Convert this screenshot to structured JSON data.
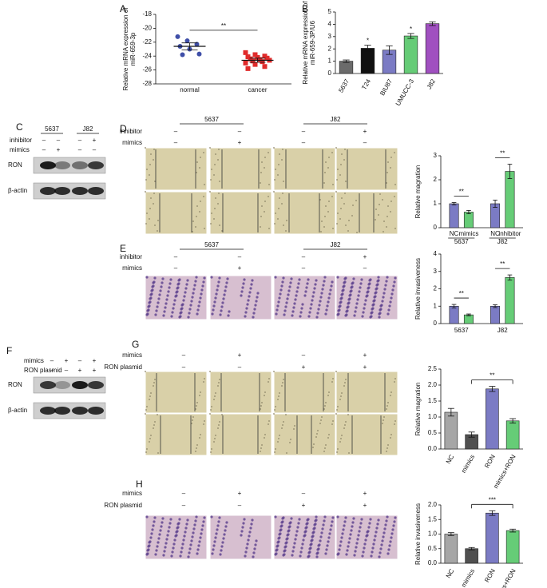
{
  "chart_data": [
    {
      "type": "dot",
      "y_label": [
        "Relative mRNA expression of",
        "miR-659-3p"
      ],
      "categories": [
        "normal",
        "cancer"
      ],
      "points": [
        [
          -21.2,
          -21.8,
          -22.3,
          -22.6,
          -23.0,
          -23.7,
          -23.8
        ],
        [
          -23.5,
          -23.8,
          -24.0,
          -24.1,
          -24.2,
          -24.3,
          -24.4,
          -24.5,
          -24.6,
          -24.7,
          -24.8,
          -25.0,
          -25.2,
          -25.5,
          -25.8
        ]
      ],
      "means": [
        -22.6,
        -24.6
      ],
      "errors": [
        0.5,
        0.3
      ],
      "colors": [
        "#3f4fa8",
        "#e02b2b"
      ],
      "ylim": [
        -28,
        -18
      ],
      "yticks": [
        -28,
        -26,
        -24,
        -22,
        -20,
        -18
      ],
      "significance": [
        {
          "label": "**",
          "from": 0,
          "to": 1
        }
      ]
    },
    {
      "type": "bar",
      "y_label": [
        "Relative mRNA expression of",
        "miR-659-3P/U6"
      ],
      "categories": [
        "5637",
        "T24",
        "BIU87",
        "UMUCC-3",
        "J82"
      ],
      "values": [
        1.0,
        2.05,
        1.9,
        3.05,
        4.05
      ],
      "errors": [
        0.1,
        0.25,
        0.35,
        0.2,
        0.15
      ],
      "colors": [
        "#6b6b6b",
        "#111111",
        "#7b7bc4",
        "#66cc77",
        "#a050c0"
      ],
      "bar_labels": [
        null,
        "*",
        null,
        "*",
        null
      ],
      "ylim": [
        0,
        5
      ],
      "yticks": [
        0,
        1,
        2,
        3,
        4,
        5
      ]
    },
    {
      "type": "bar",
      "y_label": [
        "Relative magration"
      ],
      "categories": [
        "NC",
        "mimics",
        "NC",
        "inhibitor"
      ],
      "groups": [
        "5637",
        "J82"
      ],
      "values": [
        1.0,
        0.65,
        1.0,
        2.35
      ],
      "errors": [
        0.05,
        0.07,
        0.15,
        0.3
      ],
      "colors": [
        "#7b7bc4",
        "#66cc77",
        "#7b7bc4",
        "#66cc77"
      ],
      "ylim": [
        0,
        3
      ],
      "yticks": [
        0,
        1,
        2,
        3
      ],
      "significance": [
        {
          "label": "**",
          "from": 0,
          "to": 1
        },
        {
          "label": "**",
          "from": 2,
          "to": 3
        }
      ]
    },
    {
      "type": "bar",
      "y_label": [
        "Relative invasiveness"
      ],
      "categories": [
        null,
        null,
        null,
        null
      ],
      "groups": [
        "5637",
        "J82"
      ],
      "values": [
        1.0,
        0.5,
        1.0,
        2.65
      ],
      "errors": [
        0.1,
        0.05,
        0.08,
        0.15
      ],
      "colors": [
        "#7b7bc4",
        "#66cc77",
        "#7b7bc4",
        "#66cc77"
      ],
      "ylim": [
        0,
        4
      ],
      "yticks": [
        0,
        1,
        2,
        3,
        4
      ],
      "significance": [
        {
          "label": "**",
          "from": 0,
          "to": 1
        },
        {
          "label": "**",
          "from": 2,
          "to": 3
        }
      ]
    },
    {
      "type": "bar",
      "y_label": [
        "Relative magration"
      ],
      "categories": [
        "NC",
        "mimics",
        "RON",
        "mimics+RON"
      ],
      "values": [
        1.15,
        0.45,
        1.88,
        0.88
      ],
      "errors": [
        0.12,
        0.08,
        0.08,
        0.07
      ],
      "colors": [
        "#a6a6a6",
        "#505050",
        "#7b7bc4",
        "#66cc77"
      ],
      "ylim": [
        0,
        2.5
      ],
      "yticks": [
        {
          "value": 0,
          "label": "0.0"
        },
        0.5,
        {
          "value": 1,
          "label": "1.0"
        },
        1.5,
        {
          "value": 2,
          "label": "2.0"
        },
        2.5
      ],
      "significance": [
        {
          "label": "**",
          "from": 1,
          "to": 3
        }
      ]
    },
    {
      "type": "bar",
      "y_label": [
        "Relative invasiveness"
      ],
      "categories": [
        "NC",
        "mimics",
        "RON",
        "mimics+RON"
      ],
      "values": [
        1.0,
        0.5,
        1.72,
        1.12
      ],
      "errors": [
        0.05,
        0.04,
        0.08,
        0.05
      ],
      "colors": [
        "#a6a6a6",
        "#505050",
        "#7b7bc4",
        "#66cc77"
      ],
      "ylim": [
        0,
        2
      ],
      "yticks": [
        {
          "value": 0,
          "label": "0.0"
        },
        0.5,
        {
          "value": 1,
          "label": "1.0"
        },
        1.5,
        {
          "value": 2,
          "label": "2.0"
        }
      ],
      "significance": [
        {
          "label": "***",
          "from": 1,
          "to": 3
        }
      ]
    }
  ],
  "figure": {
    "letters": [
      "A",
      "B",
      "C",
      "D",
      "E",
      "F",
      "G",
      "H"
    ],
    "C": {
      "cell_lines": [
        "5637",
        "J82"
      ],
      "rows": [
        {
          "label": "inhibitor",
          "signs": [
            "–",
            "–",
            "–",
            "+"
          ]
        },
        {
          "label": "mimics",
          "signs": [
            "–",
            "+",
            "–",
            "–"
          ]
        }
      ],
      "bands": [
        "RON",
        "β-actin"
      ]
    },
    "D": {
      "cell_lines": [
        "5637",
        "J82"
      ],
      "rows": [
        {
          "label": "inhibitor",
          "signs": [
            "–",
            "–",
            "–",
            "+"
          ]
        },
        {
          "label": "mimics",
          "signs": [
            "–",
            "+",
            "–",
            "–"
          ]
        }
      ]
    },
    "E": {
      "cell_lines": [
        "5637",
        "J82"
      ],
      "rows": [
        {
          "label": "inhibitor",
          "signs": [
            "–",
            "–",
            "–",
            "+"
          ]
        },
        {
          "label": "mimics",
          "signs": [
            "–",
            "+",
            "–",
            "–"
          ]
        }
      ]
    },
    "F": {
      "rows": [
        {
          "label": "mimics",
          "signs": [
            "–",
            "+",
            "–",
            "+"
          ]
        },
        {
          "label": "RON plasmid",
          "signs": [
            "–",
            "–",
            "+",
            "+"
          ]
        }
      ],
      "bands": [
        "RON",
        "β-actin"
      ]
    },
    "G": {
      "rows": [
        {
          "label": "mimics",
          "signs": [
            "–",
            "+",
            "–",
            "+"
          ]
        },
        {
          "label": "RON plasmid",
          "signs": [
            "–",
            "–",
            "+",
            "+"
          ]
        }
      ]
    },
    "H": {
      "rows": [
        {
          "label": "mimics",
          "signs": [
            "–",
            "+",
            "–",
            "+"
          ]
        },
        {
          "label": "RON plasmid",
          "signs": [
            "–",
            "–",
            "+",
            "+"
          ]
        }
      ]
    }
  }
}
